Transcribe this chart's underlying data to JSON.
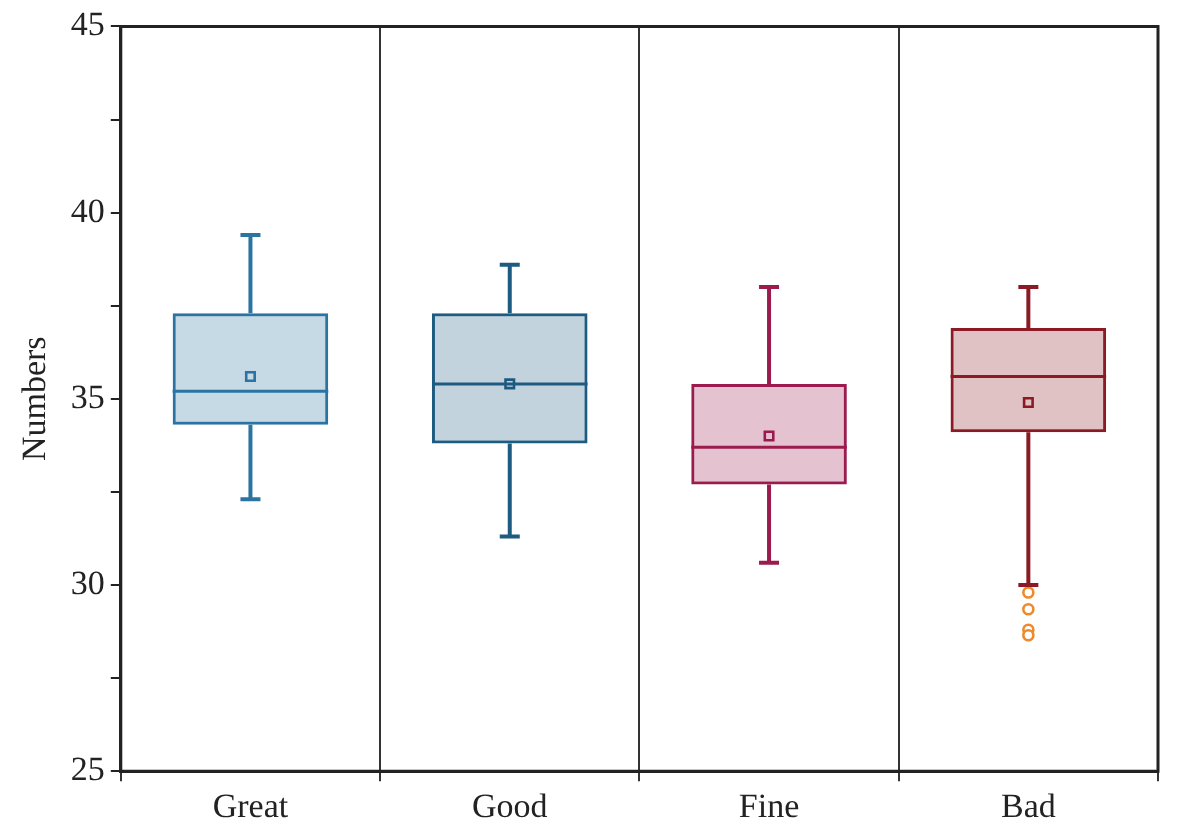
{
  "chart_data": {
    "type": "box",
    "ylabel": "Numbers",
    "categories": [
      "Great",
      "Good",
      "Fine",
      "Bad"
    ],
    "ylim": [
      25,
      45
    ],
    "yticks": [
      25,
      {
        "value": 27.5,
        "label": null
      },
      30,
      {
        "value": 32.5,
        "label": null
      },
      35,
      {
        "value": 37.5,
        "label": null
      },
      40,
      {
        "value": 42.5,
        "label": null
      },
      45
    ],
    "grid": "x",
    "series": [
      {
        "colors": [
          "#2b73a3",
          "#1d5b80",
          "#9b1b4f",
          "#8b1a25"
        ],
        "boxes": [
          {
            "low": 32.3,
            "q1": 34.3,
            "median": 35.2,
            "q3": 37.3,
            "high": 39.4,
            "mean": 35.6
          },
          {
            "low": 31.3,
            "q1": 33.8,
            "median": 35.4,
            "q3": 37.3,
            "high": 38.6,
            "mean": 35.4
          },
          {
            "low": 30.6,
            "q1": 32.7,
            "median": 33.7,
            "q3": 35.4,
            "high": 38.0,
            "mean": 34.0
          },
          {
            "low": 30.0,
            "q1": 34.1,
            "median": 35.6,
            "q3": 36.9,
            "high": 38.0,
            "mean": 34.9
          }
        ]
      },
      {
        "type": "scatter",
        "x": [
          "Bad",
          "Bad",
          "Bad",
          "Bad"
        ],
        "values": [
          29.8,
          29.35,
          28.8,
          28.65
        ],
        "color": "#f0892a",
        "marker": "circle"
      }
    ]
  }
}
